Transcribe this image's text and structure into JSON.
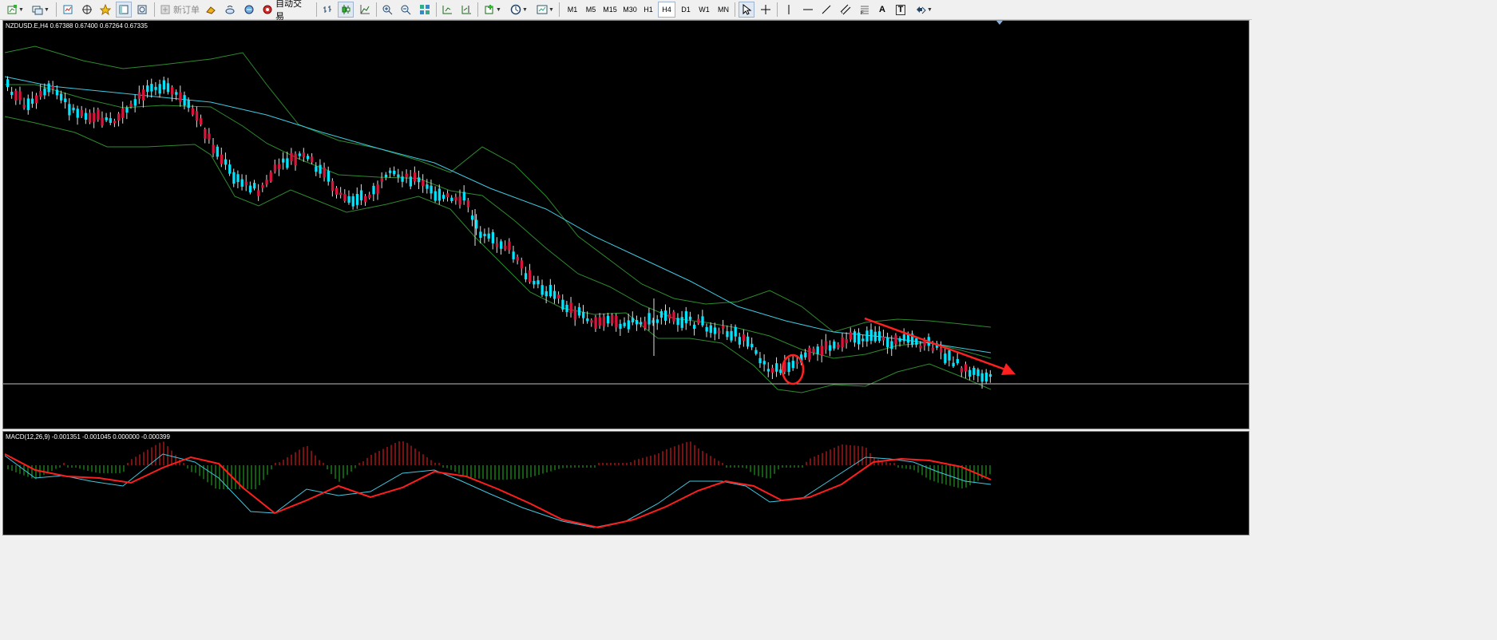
{
  "toolbar": {
    "new_order_label": "新订单",
    "auto_trading_label": "自动交易",
    "timeframes": [
      "M1",
      "M5",
      "M15",
      "M30",
      "H1",
      "H4",
      "D1",
      "W1",
      "MN"
    ],
    "active_timeframe": "H4",
    "text_tool_label": "A",
    "text_label_tool_label": "T",
    "icons": [
      "new-chart-icon",
      "profiles-icon",
      "market-watch-icon",
      "navigator-icon",
      "favorites-icon",
      "data-window-icon",
      "strategy-tester-icon",
      "new-order-icon",
      "metaeditor-icon",
      "history-icon",
      "signals-icon",
      "auto-trading-icon",
      "bar-chart-icon",
      "candlestick-icon",
      "line-chart-icon",
      "zoom-in-icon",
      "zoom-out-icon",
      "tile-windows-icon",
      "auto-scroll-icon",
      "chart-shift-icon",
      "indicators-icon",
      "periods-icon",
      "templates-icon",
      "cursor-icon",
      "crosshair-icon",
      "vertical-line-icon",
      "horizontal-line-icon",
      "trendline-icon",
      "equidistant-channel-icon",
      "fibonacci-icon",
      "text-icon",
      "text-label-icon",
      "arrows-icon"
    ]
  },
  "main_chart": {
    "label": "NZDUSD.E,H4  0.67388 0.67400 0.67264 0.67335"
  },
  "macd_panel": {
    "label": "MACD(12,26,9) -0.001351 -0.001045 0.000000 -0.000399"
  },
  "colors": {
    "background": "#000000",
    "bull_candle": "#dc143c",
    "bear_candle": "#00e5ff",
    "bollinger_bands": "#2e8b2e",
    "moving_average": "#40c8e0",
    "price_line": "#c0c0c0",
    "annotation": "#ff2020",
    "macd_histogram_positive": "#c81e1e",
    "macd_histogram_negative": "#1e9a1e",
    "macd_main_line": "#40c8e0",
    "macd_signal_line": "#ff1e1e"
  },
  "chart_data": {
    "type": "candlestick",
    "symbol": "NZDUSD.E",
    "timeframe": "H4",
    "last_bar": {
      "open": 0.67388,
      "high": 0.674,
      "low": 0.67264,
      "close": 0.67335
    },
    "indicators": [
      "Bollinger Bands",
      "Moving Average",
      "MACD(12,26,9)"
    ],
    "macd": {
      "main": -0.001351,
      "signal": -0.001045,
      "histogram_zero": 0.0,
      "last_histogram": -0.000399
    },
    "annotations": [
      "red circle around reversal candle",
      "red down-sloping trendline with arrow"
    ]
  }
}
